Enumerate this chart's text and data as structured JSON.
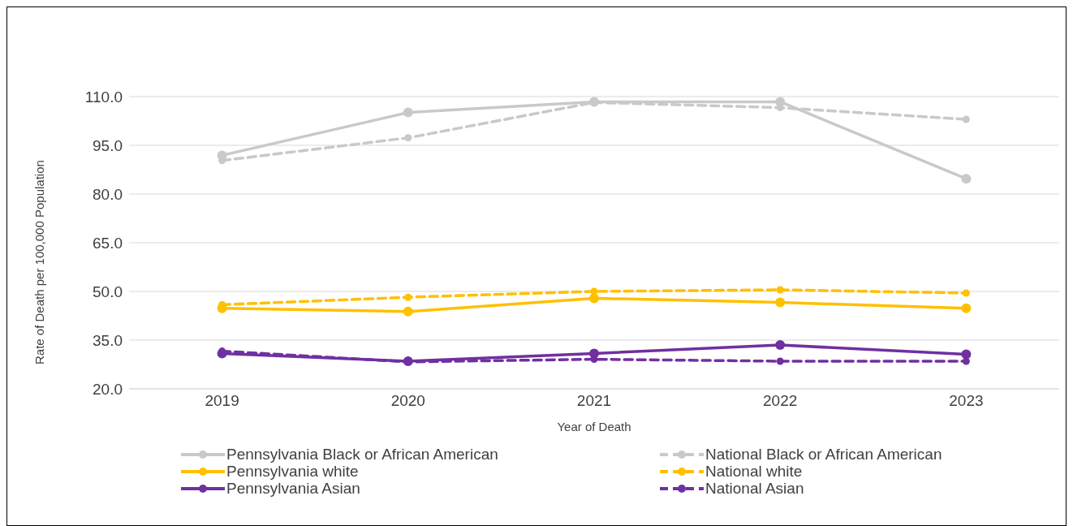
{
  "chart_data": {
    "type": "line",
    "xlabel": "Year of Death",
    "ylabel": "Rate of Death per 100,000 Population",
    "categories": [
      "2019",
      "2020",
      "2021",
      "2022",
      "2023"
    ],
    "ylim": [
      20,
      110
    ],
    "yticks": [
      {
        "value": 20,
        "label": "20.0"
      },
      {
        "value": 35,
        "label": "35.0"
      },
      {
        "value": 50,
        "label": "50.0"
      },
      {
        "value": 65,
        "label": "65.0"
      },
      {
        "value": 80,
        "label": "80.0"
      },
      {
        "value": 95,
        "label": "95.0"
      },
      {
        "value": 110,
        "label": "110.0"
      }
    ],
    "grid": "y",
    "legend": "bottom",
    "marker": "circle",
    "series": [
      {
        "name": "Pennsylvania Black or African American",
        "color": "#c9c9c9",
        "line_style": "solid",
        "values": [
          91.9,
          105.1,
          108.4,
          108.4,
          84.7
        ]
      },
      {
        "name": "National Black or African American",
        "color": "#c9c9c9",
        "line_style": "dashed",
        "values": [
          90.3,
          97.3,
          108.2,
          106.6,
          103.0
        ]
      },
      {
        "name": "Pennsylvania white",
        "color": "#ffc000",
        "line_style": "solid",
        "values": [
          44.8,
          43.8,
          47.9,
          46.6,
          44.8
        ]
      },
      {
        "name": "National white",
        "color": "#ffc000",
        "line_style": "dashed",
        "values": [
          45.9,
          48.2,
          50.0,
          50.5,
          49.5
        ]
      },
      {
        "name": "Pennsylvania Asian",
        "color": "#7030a0",
        "line_style": "solid",
        "values": [
          30.9,
          28.5,
          30.9,
          33.5,
          30.6
        ]
      },
      {
        "name": "National Asian",
        "color": "#7030a0",
        "line_style": "dashed",
        "values": [
          31.6,
          28.3,
          29.1,
          28.5,
          28.5
        ]
      }
    ]
  }
}
